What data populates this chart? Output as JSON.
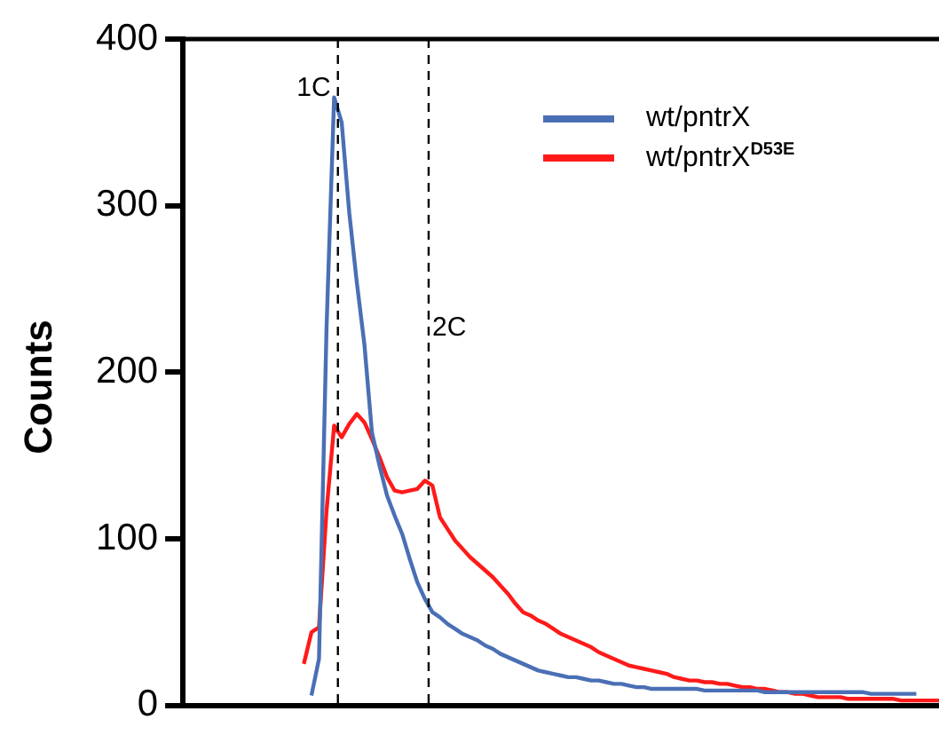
{
  "chart_data": {
    "type": "line",
    "ylabel": "Counts",
    "categories": [
      null,
      null,
      null,
      null,
      null,
      null,
      null,
      null,
      null,
      null,
      null,
      null,
      null,
      null,
      null,
      null,
      null,
      null,
      null,
      null,
      null,
      null,
      null,
      null,
      null,
      null,
      null,
      null,
      null,
      null,
      null,
      null,
      null,
      null,
      null,
      null,
      null,
      null,
      null,
      null,
      null,
      null,
      null,
      null,
      null,
      null,
      null,
      null,
      null,
      null,
      null,
      null,
      null,
      null,
      null,
      null,
      null,
      null,
      null,
      null,
      null,
      null,
      null,
      null,
      null,
      null,
      null,
      null,
      null,
      null,
      null,
      null,
      null,
      null,
      null,
      null,
      null,
      null,
      null,
      null,
      null,
      null,
      null,
      null,
      null,
      null,
      null,
      null,
      null,
      null,
      null,
      null,
      null,
      null,
      null,
      null,
      null,
      null,
      null,
      null,
      null
    ],
    "ylim": [
      0,
      400
    ],
    "yticks": [
      0,
      100,
      200,
      300,
      400
    ],
    "tick_labels": "y",
    "legend": "top right",
    "marker": "none",
    "line_style": "solid",
    "annotations": [
      "1C",
      "2C"
    ],
    "series": [
      {
        "name": "wt/pntrX",
        "color": "#4a6fb5",
        "values": [
          null,
          null,
          null,
          null,
          null,
          null,
          null,
          null,
          null,
          null,
          null,
          null,
          null,
          null,
          null,
          null,
          null,
          6,
          28,
          227,
          365,
          350,
          296,
          254,
          217,
          164,
          144,
          126,
          114,
          103,
          88,
          74,
          64,
          56,
          53,
          49,
          46,
          43,
          41,
          39,
          36,
          34,
          31,
          29,
          27,
          25,
          23,
          21,
          20,
          19,
          18,
          17,
          17,
          16,
          15,
          15,
          14,
          13,
          13,
          12,
          11,
          11,
          10,
          10,
          10,
          10,
          10,
          10,
          10,
          9,
          9,
          9,
          9,
          9,
          9,
          9,
          9,
          8,
          8,
          8,
          8,
          8,
          8,
          8,
          8,
          8,
          8,
          8,
          8,
          8,
          8,
          7,
          7,
          7,
          7,
          7,
          7,
          7,
          null,
          null,
          null
        ]
      },
      {
        "name": "wt/pntrX$^{D53E}$",
        "color": "#ff1a1a",
        "values": [
          null,
          null,
          null,
          null,
          null,
          null,
          null,
          null,
          null,
          null,
          null,
          null,
          null,
          null,
          null,
          null,
          25,
          44,
          47,
          117,
          168,
          161,
          169,
          175,
          170,
          160,
          149,
          137,
          129,
          128,
          129,
          130,
          135,
          132,
          113,
          106,
          99,
          94,
          89,
          85,
          81,
          77,
          72,
          67,
          61,
          56,
          54,
          51,
          49,
          46,
          43,
          41,
          39,
          37,
          35,
          32,
          30,
          28,
          26,
          24,
          23,
          22,
          21,
          20,
          19,
          17,
          16,
          15,
          15,
          14,
          14,
          13,
          13,
          12,
          11,
          11,
          10,
          10,
          9,
          8,
          8,
          7,
          7,
          6,
          5,
          5,
          5,
          5,
          4,
          4,
          4,
          4,
          4,
          4,
          4,
          3,
          3,
          3,
          3,
          3,
          3
        ]
      }
    ]
  }
}
